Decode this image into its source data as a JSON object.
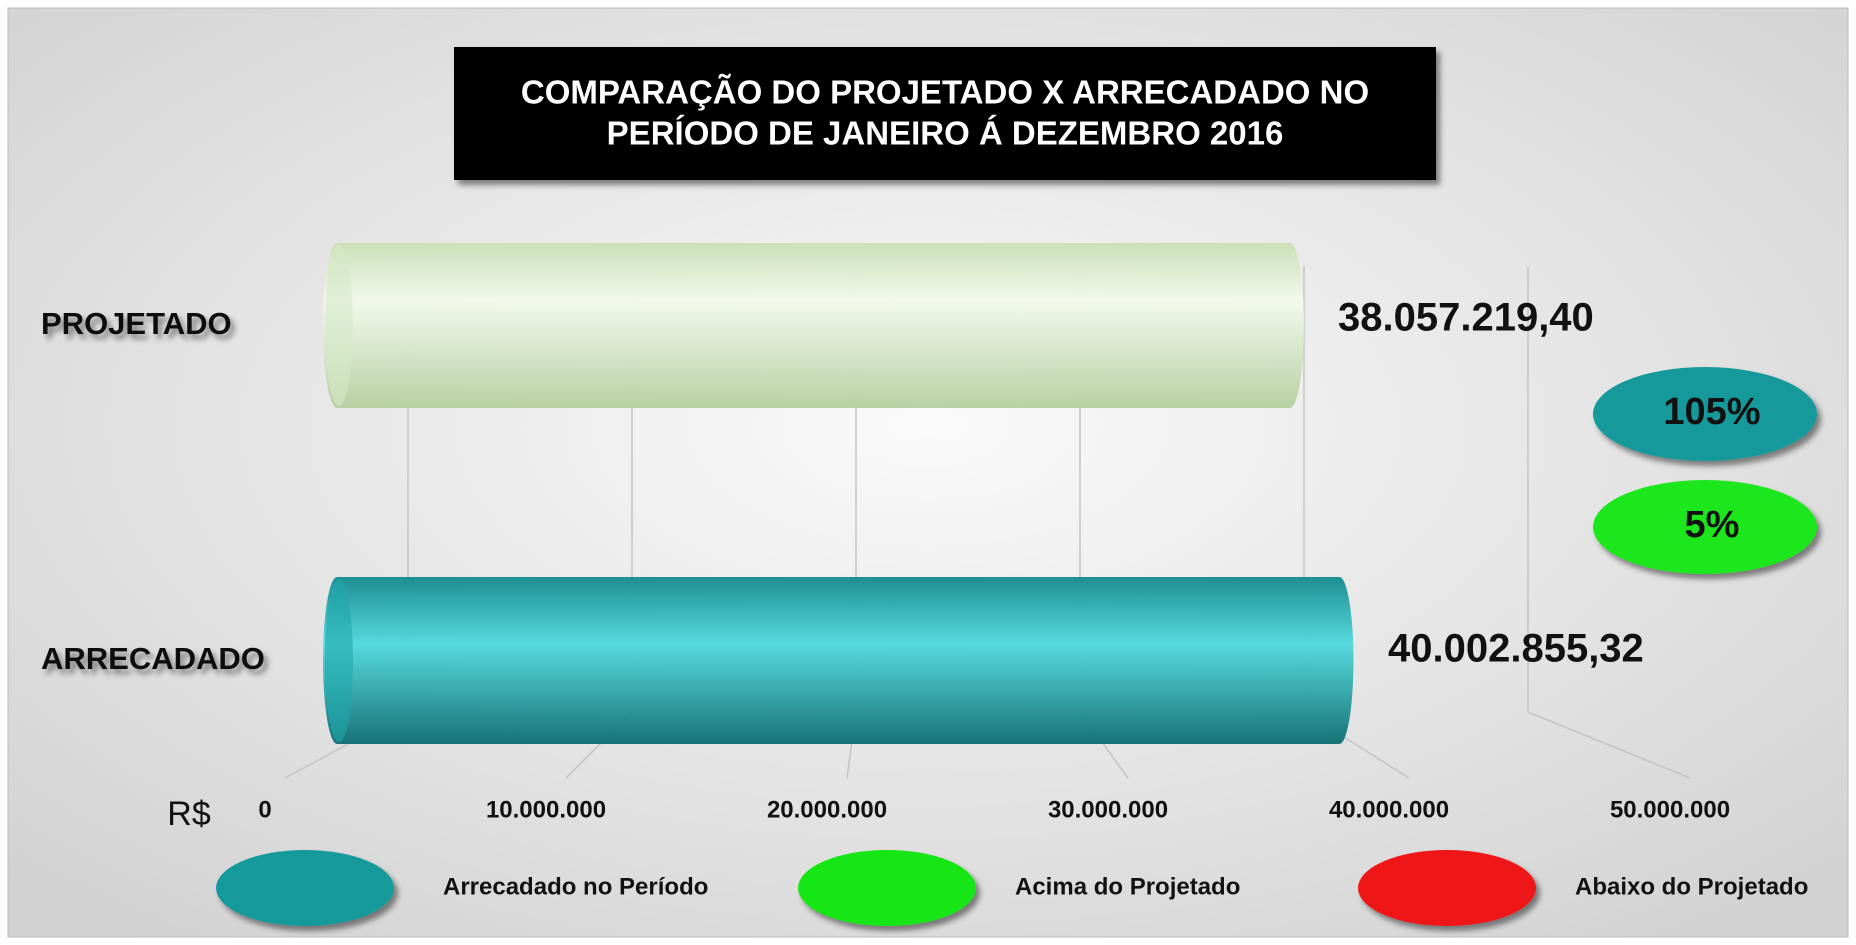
{
  "chart_data": {
    "type": "bar",
    "orientation": "horizontal",
    "title_lines": [
      "COMPARAÇÃO DO PROJETADO X ARRECADADO NO",
      "PERÍODO DE  JANEIRO Á DEZEMBRO 2016"
    ],
    "x_label": "R$",
    "categories": [
      "PROJETADO",
      "ARRECADADO"
    ],
    "values": [
      38057219.4,
      40002855.32
    ],
    "value_labels": [
      "38.057.219,40",
      "40.002.855,32"
    ],
    "colors": [
      "#d6e9c6",
      "#1fa8ac"
    ],
    "xlim": [
      0,
      50000000
    ],
    "xticks": [
      0,
      {
        "value": 10000000,
        "label": "10.000.000"
      },
      {
        "value": 20000000,
        "label": "20.000.000"
      },
      {
        "value": 30000000,
        "label": "30.000.000"
      },
      {
        "value": 40000000,
        "label": "40.000.000"
      },
      {
        "value": 50000000,
        "label": "50.000.000"
      }
    ],
    "grid": true,
    "annotations": [
      {
        "value": 105,
        "label": "105%",
        "color": "#19999b"
      },
      {
        "value": 5,
        "label": "5%",
        "color": "#1ee61e"
      }
    ],
    "legend": [
      {
        "label": "Arrecadado no Período",
        "color": "#19999b"
      },
      {
        "label": "Acima do Projetado",
        "color": "#16e616"
      },
      {
        "label": "Abaixo do Projetado",
        "color": "#ee1515"
      }
    ]
  }
}
